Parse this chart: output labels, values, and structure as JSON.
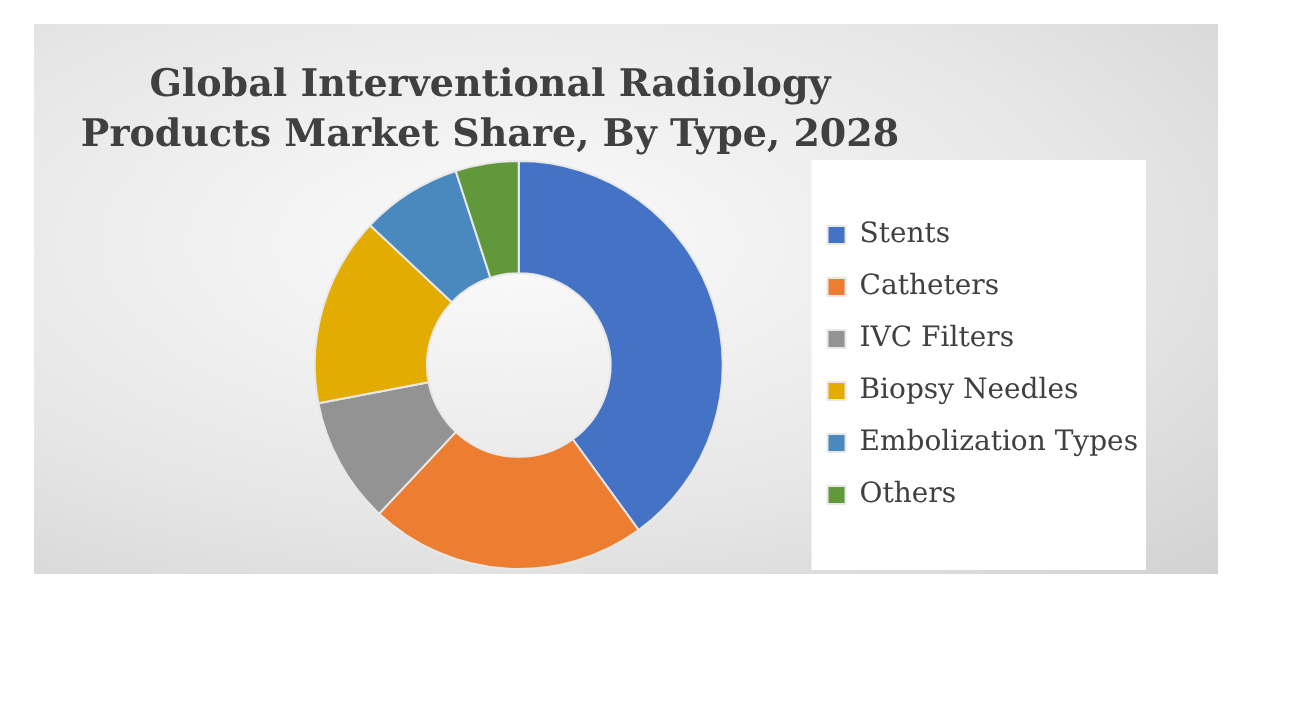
{
  "chart_data": {
    "type": "donut",
    "title": "Global Interventional Radiology Products Market Share, By Type, 2028",
    "categories": [
      "Stents",
      "Catheters",
      "IVC Filters",
      "Biopsy Needles",
      "Embolization Types",
      "Others"
    ],
    "values": [
      40,
      22,
      10,
      15,
      8,
      5
    ],
    "colors": [
      "#4472c4",
      "#ed7d31",
      "#939393",
      "#e3ac00",
      "#4a89bf",
      "#61983c"
    ],
    "legend": "right"
  }
}
